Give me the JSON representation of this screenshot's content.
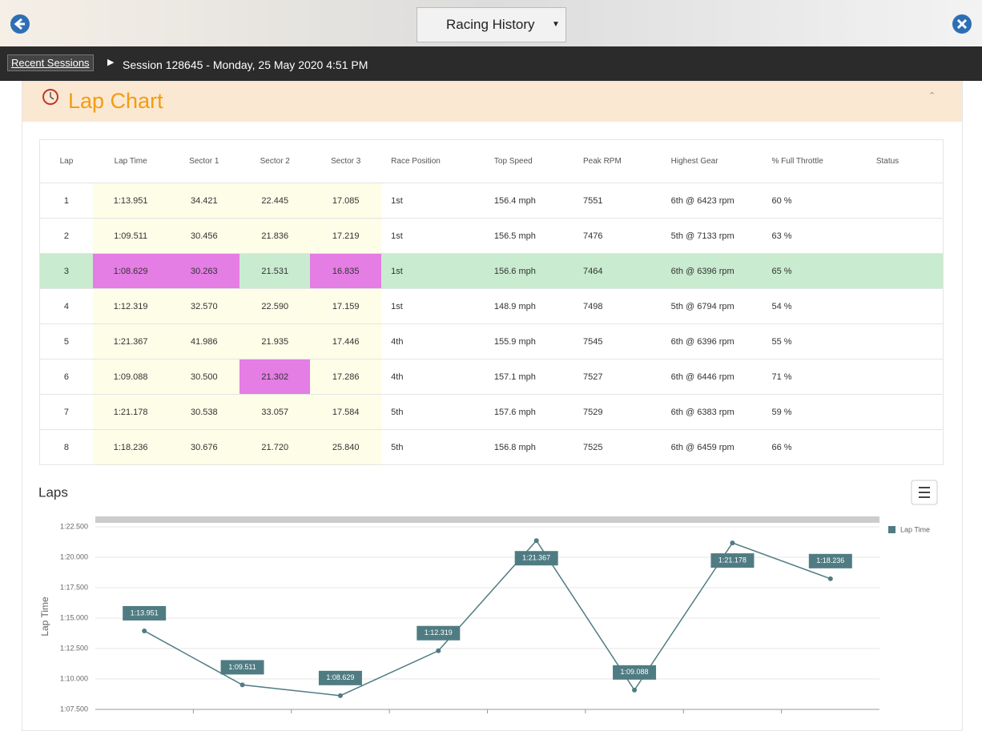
{
  "header": {
    "title": "Racing History"
  },
  "breadcrumb": {
    "link": "Recent Sessions",
    "current": "Session 128645 - Monday, 25 May 2020 4:51 PM"
  },
  "panel": {
    "title": "Lap Chart"
  },
  "table": {
    "columns": [
      "Lap",
      "Lap Time",
      "Sector 1",
      "Sector 2",
      "Sector 3",
      "Race Position",
      "Top Speed",
      "Peak RPM",
      "Highest Gear",
      "% Full Throttle",
      "Status"
    ],
    "rows": [
      [
        "1",
        "1:13.951",
        "34.421",
        "22.445",
        "17.085",
        "1st",
        "156.4 mph",
        "7551",
        "6th @ 6423 rpm",
        "60 %"
      ],
      [
        "2",
        "1:09.511",
        "30.456",
        "21.836",
        "17.219",
        "1st",
        "156.5 mph",
        "7476",
        "5th @ 7133 rpm",
        "63 %"
      ],
      [
        "3",
        "1:08.629",
        "30.263",
        "21.531",
        "16.835",
        "1st",
        "156.6 mph",
        "7464",
        "6th @ 6396 rpm",
        "65 %"
      ],
      [
        "4",
        "1:12.319",
        "32.570",
        "22.590",
        "17.159",
        "1st",
        "148.9 mph",
        "7498",
        "5th @ 6794 rpm",
        "54 %"
      ],
      [
        "5",
        "1:21.367",
        "41.986",
        "21.935",
        "17.446",
        "4th",
        "155.9 mph",
        "7545",
        "6th @ 6396 rpm",
        "55 %"
      ],
      [
        "6",
        "1:09.088",
        "30.500",
        "21.302",
        "17.286",
        "4th",
        "157.1 mph",
        "7527",
        "6th @ 6446 rpm",
        "71 %"
      ],
      [
        "7",
        "1:21.178",
        "30.538",
        "33.057",
        "17.584",
        "5th",
        "157.6 mph",
        "7529",
        "6th @ 6383 rpm",
        "59 %"
      ],
      [
        "8",
        "1:18.236",
        "30.676",
        "21.720",
        "25.840",
        "5th",
        "156.8 mph",
        "7525",
        "6th @ 6459 rpm",
        "66 %"
      ]
    ]
  },
  "chart_data": {
    "type": "line",
    "title": "Laps",
    "y_label": "Lap Time",
    "series": [
      {
        "name": "Lap Time",
        "color": "#4f7c82",
        "values": [
          73.951,
          69.511,
          68.629,
          72.319,
          81.367,
          69.088,
          81.178,
          78.236
        ],
        "value_labels": [
          "1:13.951",
          "1:09.511",
          "1:08.629",
          "1:12.319",
          "1:21.367",
          "1:09.088",
          "1:21.178",
          "1:18.236"
        ]
      }
    ],
    "ylim": [
      67.5,
      82.5
    ],
    "yticks": [
      {
        "value": 67.5,
        "label": "1:07.500"
      },
      {
        "value": 70,
        "label": "1:10.000"
      },
      {
        "value": 72.5,
        "label": "1:12.500"
      },
      {
        "value": 75,
        "label": "1:15.000"
      },
      {
        "value": 77.5,
        "label": "1:17.500"
      },
      {
        "value": 80,
        "label": "1:20.000"
      },
      {
        "value": 82.5,
        "label": "1:22.500"
      }
    ],
    "grid": true
  }
}
